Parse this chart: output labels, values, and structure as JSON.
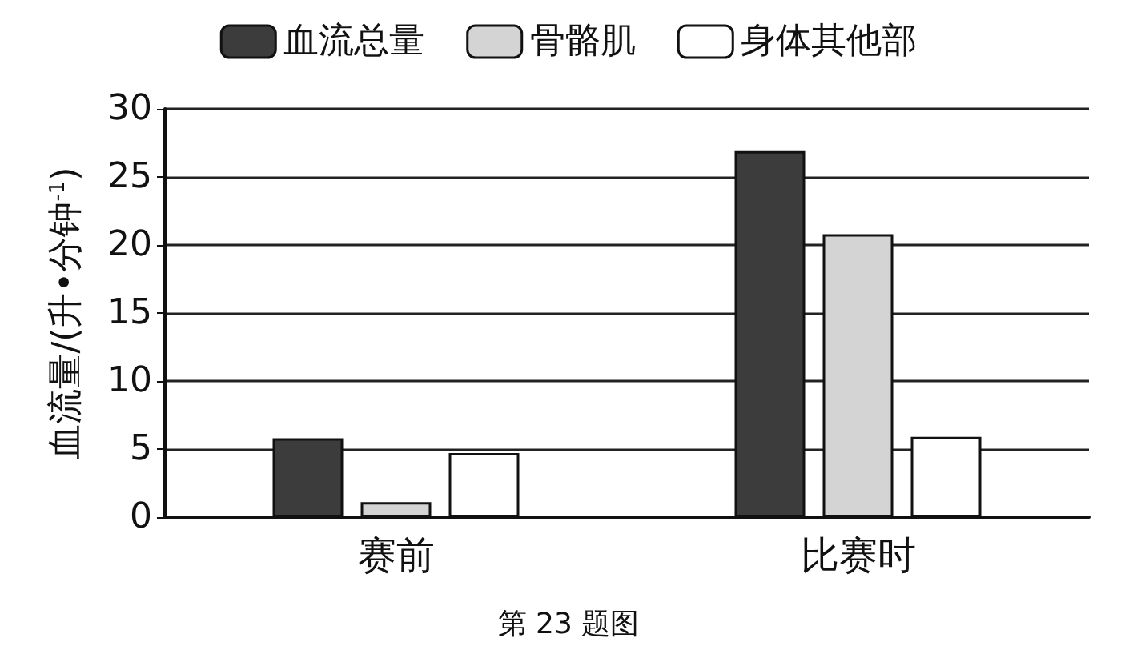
{
  "chart_data": {
    "type": "bar",
    "ylabel": "血流量/(升•分钟$^{-1}$)",
    "annotations": [
      "第 23 题图"
    ],
    "categories": [
      "赛前",
      "比赛时"
    ],
    "series": [
      {
        "name": "血流总量",
        "color": "#3c3c3c",
        "values": [
          5.8,
          26.9
        ]
      },
      {
        "name": "骨骼肌",
        "color": "#d4d4d4",
        "values": [
          1.1,
          20.8
        ]
      },
      {
        "name": "身体其他部",
        "color": "#ffffff",
        "values": [
          4.7,
          5.9
        ]
      }
    ],
    "ylim": [
      0,
      30
    ],
    "yticks": [
      0,
      5,
      10,
      15,
      20,
      25,
      30
    ],
    "grid": "y",
    "legend": "top"
  }
}
